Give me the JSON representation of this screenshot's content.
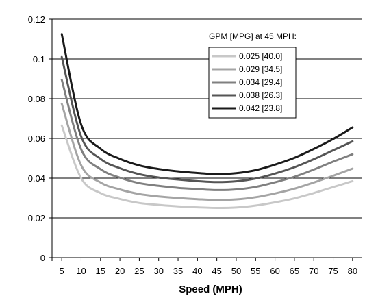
{
  "chart_data": {
    "type": "line",
    "title": "",
    "xlabel": "Speed (MPH)",
    "ylabel": "",
    "x": [
      5,
      10,
      15,
      20,
      25,
      30,
      35,
      40,
      45,
      50,
      55,
      60,
      65,
      70,
      75,
      80
    ],
    "xlim": [
      2.5,
      82.5
    ],
    "ylim": [
      0,
      0.12
    ],
    "yticks": [
      0,
      0.02,
      0.04,
      0.06,
      0.08,
      0.1,
      0.12
    ],
    "ytick_labels": [
      "0",
      "0.02",
      "0.04",
      "0.06",
      "0.08",
      "0.1",
      "0.12"
    ],
    "xtick_labels": [
      "5",
      "10",
      "15",
      "20",
      "25",
      "30",
      "35",
      "40",
      "45",
      "50",
      "55",
      "60",
      "65",
      "70",
      "75",
      "80"
    ],
    "grid": "horizontal",
    "legend": {
      "title": "GPM [MPG] at 45 MPH:",
      "placement": "top-right"
    },
    "series": [
      {
        "name": "0.025 [40.0]",
        "color": "#c8c8c8",
        "values": [
          0.0665,
          0.04,
          0.0325,
          0.0295,
          0.0275,
          0.0265,
          0.0258,
          0.0253,
          0.025,
          0.0252,
          0.0262,
          0.0278,
          0.0298,
          0.0325,
          0.0355,
          0.0385
        ]
      },
      {
        "name": "0.029 [34.5]",
        "color": "#a4a4a4",
        "values": [
          0.0775,
          0.0465,
          0.0378,
          0.0343,
          0.032,
          0.0308,
          0.03,
          0.0294,
          0.029,
          0.0293,
          0.0304,
          0.0323,
          0.0347,
          0.0378,
          0.0412,
          0.0448
        ]
      },
      {
        "name": "0.034 [29.4]",
        "color": "#808080",
        "values": [
          0.0895,
          0.0545,
          0.0445,
          0.0402,
          0.0375,
          0.0361,
          0.0351,
          0.0345,
          0.034,
          0.0343,
          0.0356,
          0.0379,
          0.0407,
          0.0443,
          0.0483,
          0.052
        ]
      },
      {
        "name": "0.038 [26.3]",
        "color": "#555555",
        "values": [
          0.101,
          0.061,
          0.0497,
          0.045,
          0.042,
          0.0403,
          0.0393,
          0.0385,
          0.038,
          0.0384,
          0.0398,
          0.0423,
          0.0455,
          0.0495,
          0.054,
          0.0585
        ]
      },
      {
        "name": "0.042 [23.8]",
        "color": "#1a1a1a",
        "values": [
          0.1125,
          0.067,
          0.0548,
          0.0497,
          0.0464,
          0.0446,
          0.0434,
          0.0426,
          0.042,
          0.0425,
          0.044,
          0.0468,
          0.0502,
          0.0547,
          0.0597,
          0.0655
        ]
      }
    ]
  }
}
